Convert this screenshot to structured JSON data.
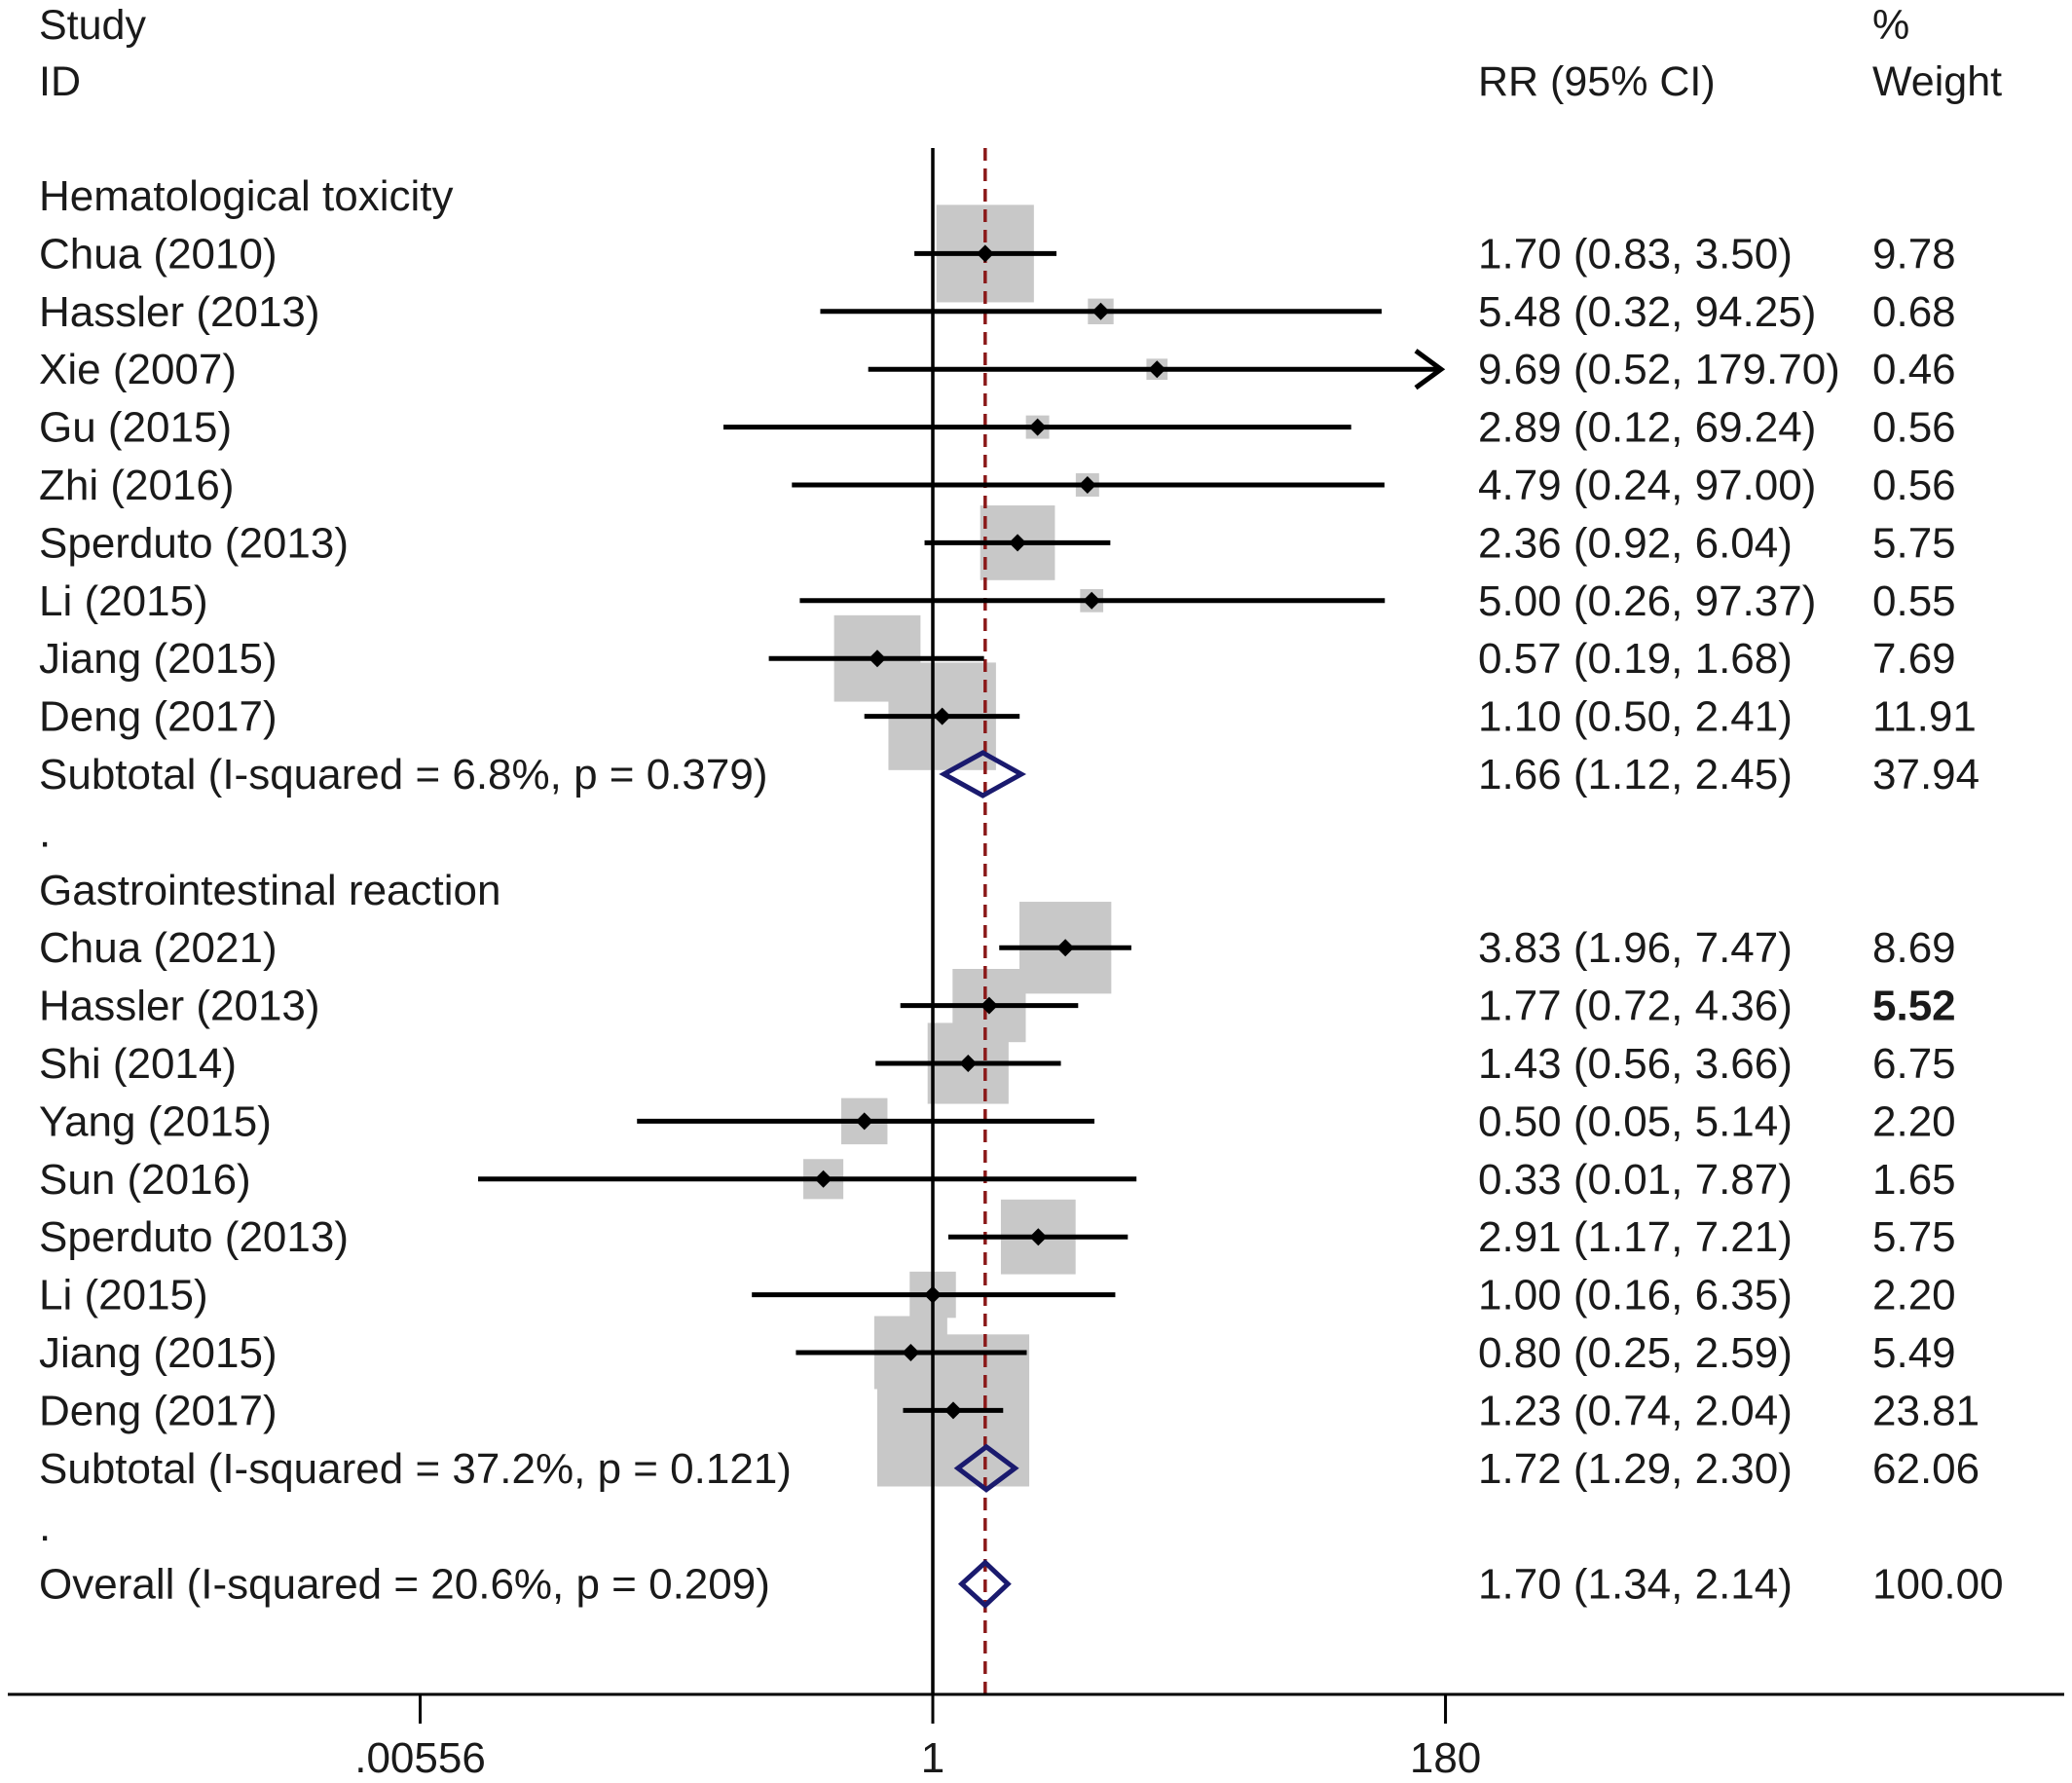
{
  "chart_data": {
    "type": "forest",
    "headers": {
      "study": "Study",
      "id": "ID",
      "effect": "RR (95% CI)",
      "weight_pct": "%",
      "weight": "Weight"
    },
    "x_axis": {
      "scale": "log",
      "ticks": [
        {
          "value": 0.00556,
          "label": ".00556"
        },
        {
          "value": 1,
          "label": "1"
        },
        {
          "value": 180,
          "label": "180"
        }
      ],
      "null_line": 1,
      "overall_reference": 1.7
    },
    "rows": [
      {
        "kind": "group",
        "label": "Hematological toxicity"
      },
      {
        "kind": "study",
        "label": "Chua (2010)",
        "rr": 1.7,
        "lo": 0.83,
        "hi": 3.5,
        "ci_text": "1.70 (0.83, 3.50)",
        "weight_text": "9.78",
        "weight": 9.78
      },
      {
        "kind": "study",
        "label": "Hassler (2013)",
        "rr": 5.48,
        "lo": 0.32,
        "hi": 94.25,
        "ci_text": "5.48 (0.32, 94.25)",
        "weight_text": "0.68",
        "weight": 0.68
      },
      {
        "kind": "study",
        "label": "Xie (2007)",
        "rr": 9.69,
        "lo": 0.52,
        "hi": 179.7,
        "ci_text": "9.69 (0.52, 179.70)",
        "weight_text": "0.46",
        "weight": 0.46,
        "arrow_right": true
      },
      {
        "kind": "study",
        "label": "Gu (2015)",
        "rr": 2.89,
        "lo": 0.12,
        "hi": 69.24,
        "ci_text": "2.89 (0.12, 69.24)",
        "weight_text": "0.56",
        "weight": 0.56
      },
      {
        "kind": "study",
        "label": "Zhi (2016)",
        "rr": 4.79,
        "lo": 0.24,
        "hi": 97.0,
        "ci_text": "4.79 (0.24, 97.00)",
        "weight_text": "0.56",
        "weight": 0.56
      },
      {
        "kind": "study",
        "label": "Sperduto (2013)",
        "rr": 2.36,
        "lo": 0.92,
        "hi": 6.04,
        "ci_text": "2.36 (0.92, 6.04)",
        "weight_text": "5.75",
        "weight": 5.75
      },
      {
        "kind": "study",
        "label": "Li (2015)",
        "rr": 5.0,
        "lo": 0.26,
        "hi": 97.37,
        "ci_text": "5.00 (0.26, 97.37)",
        "weight_text": "0.55",
        "weight": 0.55
      },
      {
        "kind": "study",
        "label": "Jiang (2015)",
        "rr": 0.57,
        "lo": 0.19,
        "hi": 1.68,
        "ci_text": "0.57 (0.19, 1.68)",
        "weight_text": "7.69",
        "weight": 7.69
      },
      {
        "kind": "study",
        "label": "Deng (2017)",
        "rr": 1.1,
        "lo": 0.5,
        "hi": 2.41,
        "ci_text": "1.10 (0.50, 2.41)",
        "weight_text": "11.91",
        "weight": 11.91
      },
      {
        "kind": "subtotal",
        "label": "Subtotal  (I-squared = 6.8%, p = 0.379)",
        "rr": 1.66,
        "lo": 1.12,
        "hi": 2.45,
        "ci_text": "1.66 (1.12, 2.45)",
        "weight_text": "37.94",
        "weight": 37.94
      },
      {
        "kind": "spacer",
        "label": "."
      },
      {
        "kind": "group",
        "label": "Gastrointestinal reaction"
      },
      {
        "kind": "study",
        "label": "Chua (2021)",
        "rr": 3.83,
        "lo": 1.96,
        "hi": 7.47,
        "ci_text": "3.83 (1.96, 7.47)",
        "weight_text": "8.69",
        "weight": 8.69
      },
      {
        "kind": "study",
        "label": "Hassler (2013)",
        "rr": 1.77,
        "lo": 0.72,
        "hi": 4.36,
        "ci_text": "1.77 (0.72, 4.36)",
        "weight_text": "5.52",
        "weight": 5.52,
        "bold_weight": true
      },
      {
        "kind": "study",
        "label": "Shi (2014)",
        "rr": 1.43,
        "lo": 0.56,
        "hi": 3.66,
        "ci_text": "1.43 (0.56, 3.66)",
        "weight_text": "6.75",
        "weight": 6.75
      },
      {
        "kind": "study",
        "label": "Yang (2015)",
        "rr": 0.5,
        "lo": 0.05,
        "hi": 5.14,
        "ci_text": "0.50 (0.05, 5.14)",
        "weight_text": "2.20",
        "weight": 2.2
      },
      {
        "kind": "study",
        "label": "Sun (2016)",
        "rr": 0.33,
        "lo": 0.01,
        "hi": 7.87,
        "ci_text": "0.33 (0.01, 7.87)",
        "weight_text": "1.65",
        "weight": 1.65
      },
      {
        "kind": "study",
        "label": "Sperduto (2013)",
        "rr": 2.91,
        "lo": 1.17,
        "hi": 7.21,
        "ci_text": "2.91 (1.17, 7.21)",
        "weight_text": "5.75",
        "weight": 5.75
      },
      {
        "kind": "study",
        "label": "Li (2015)",
        "rr": 1.0,
        "lo": 0.16,
        "hi": 6.35,
        "ci_text": "1.00 (0.16, 6.35)",
        "weight_text": "2.20",
        "weight": 2.2
      },
      {
        "kind": "study",
        "label": "Jiang (2015)",
        "rr": 0.8,
        "lo": 0.25,
        "hi": 2.59,
        "ci_text": "0.80 (0.25, 2.59)",
        "weight_text": "5.49",
        "weight": 5.49
      },
      {
        "kind": "study",
        "label": "Deng (2017)",
        "rr": 1.23,
        "lo": 0.74,
        "hi": 2.04,
        "ci_text": "1.23 (0.74, 2.04)",
        "weight_text": "23.81",
        "weight": 23.81
      },
      {
        "kind": "subtotal",
        "label": "Subtotal  (I-squared = 37.2%, p = 0.121)",
        "rr": 1.72,
        "lo": 1.29,
        "hi": 2.3,
        "ci_text": "1.72 (1.29, 2.30)",
        "weight_text": "62.06",
        "weight": 62.06
      },
      {
        "kind": "spacer",
        "label": "."
      },
      {
        "kind": "overall",
        "label": "Overall  (I-squared = 20.6%, p = 0.209)",
        "rr": 1.7,
        "lo": 1.34,
        "hi": 2.14,
        "ci_text": "1.70 (1.34, 2.14)",
        "weight_text": "100.00",
        "weight": 100.0
      }
    ],
    "colors": {
      "weight_box": "#c8c8c8",
      "point": "#000000",
      "ci_line": "#000000",
      "diamond": "#1a1a6e",
      "reference_line": "#8b1a1a",
      "axis": "#000000"
    }
  }
}
